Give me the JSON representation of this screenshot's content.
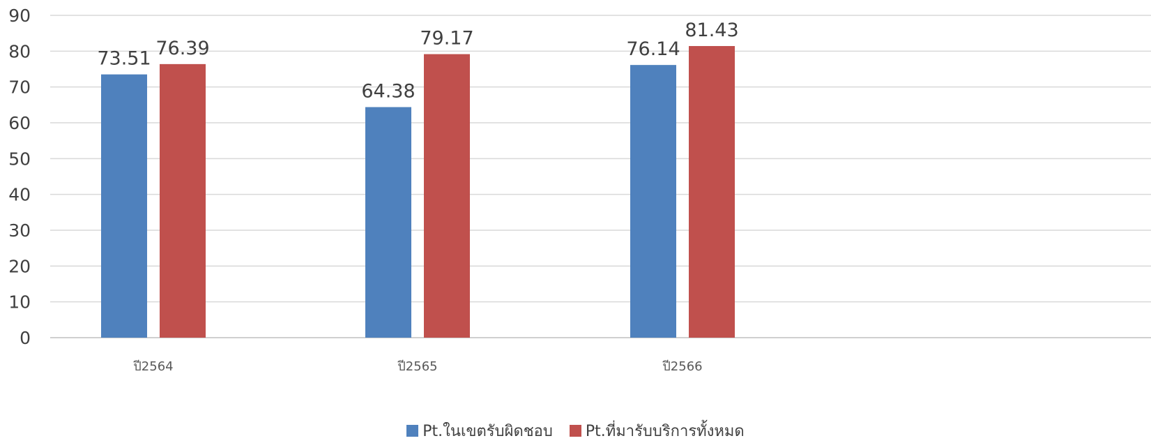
{
  "chart_data": {
    "type": "bar",
    "categories": [
      "ปี2564",
      "ปี2565",
      "ปี2566"
    ],
    "series": [
      {
        "name": "Pt.ในเขตรับผิดชอบ",
        "values": [
          73.51,
          64.38,
          76.14
        ],
        "color": "#4F81BD"
      },
      {
        "name": "Pt.ที่มารับบริการทั้งหมด",
        "values": [
          76.39,
          79.17,
          81.43
        ],
        "color": "#C0504D"
      }
    ],
    "ylim": [
      0,
      90
    ],
    "yticks": [
      0,
      10,
      20,
      30,
      40,
      50,
      60,
      70,
      80,
      90
    ],
    "data_labels": true,
    "grid": true,
    "legend_position": "bottom"
  }
}
